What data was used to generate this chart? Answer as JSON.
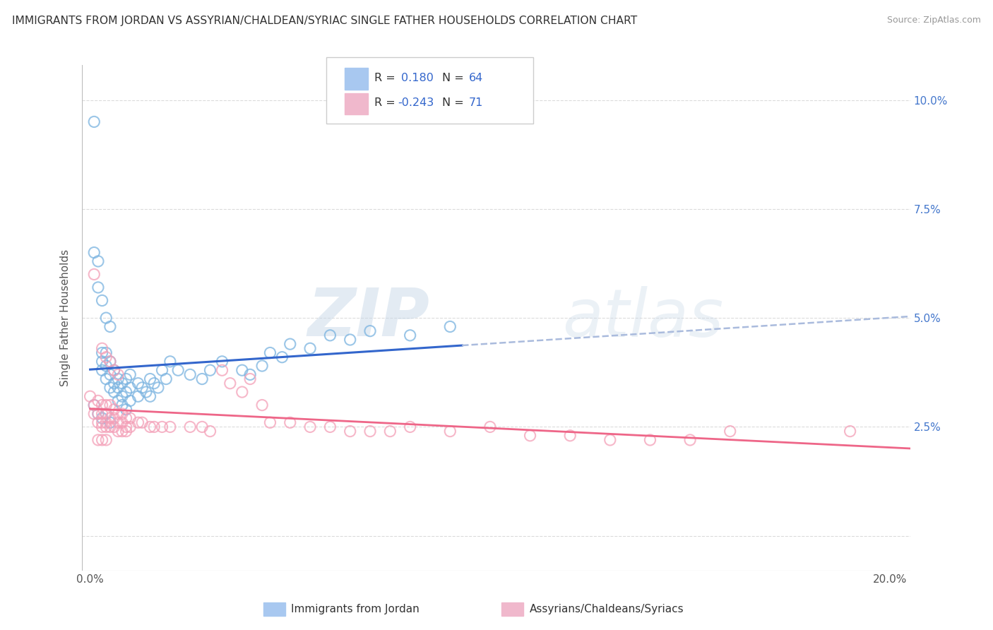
{
  "title": "IMMIGRANTS FROM JORDAN VS ASSYRIAN/CHALDEAN/SYRIAC SINGLE FATHER HOUSEHOLDS CORRELATION CHART",
  "source": "Source: ZipAtlas.com",
  "ylabel": "Single Father Households",
  "x_ticks": [
    0.0,
    0.05,
    0.1,
    0.15,
    0.2
  ],
  "y_ticks": [
    0.0,
    0.025,
    0.05,
    0.075,
    0.1
  ],
  "xlim": [
    -0.002,
    0.205
  ],
  "ylim": [
    -0.008,
    0.108
  ],
  "series1_color": "#7ab3e0",
  "series2_color": "#f4a0b8",
  "trend1_color": "#3366cc",
  "trend1_ext_color": "#aabbdd",
  "trend2_color": "#ee6688",
  "R1": 0.18,
  "N1": 64,
  "R2": -0.243,
  "N2": 71,
  "watermark_zip": "ZIP",
  "watermark_atlas": "atlas",
  "background_color": "#ffffff",
  "grid_color": "#cccccc",
  "legend_label1": "Immigrants from Jordan",
  "legend_label2": "Assyrians/Chaldeans/Syriacs",
  "legend_box_color1": "#a8c8f0",
  "legend_box_color2": "#f0b8cc",
  "blue_scatter": [
    [
      0.001,
      0.095
    ],
    [
      0.002,
      0.057
    ],
    [
      0.003,
      0.054
    ],
    [
      0.004,
      0.05
    ],
    [
      0.005,
      0.048
    ],
    [
      0.001,
      0.065
    ],
    [
      0.002,
      0.063
    ],
    [
      0.003,
      0.042
    ],
    [
      0.003,
      0.04
    ],
    [
      0.003,
      0.038
    ],
    [
      0.004,
      0.042
    ],
    [
      0.004,
      0.039
    ],
    [
      0.004,
      0.036
    ],
    [
      0.005,
      0.04
    ],
    [
      0.005,
      0.037
    ],
    [
      0.005,
      0.034
    ],
    [
      0.006,
      0.038
    ],
    [
      0.006,
      0.035
    ],
    [
      0.006,
      0.033
    ],
    [
      0.007,
      0.036
    ],
    [
      0.007,
      0.034
    ],
    [
      0.007,
      0.031
    ],
    [
      0.008,
      0.035
    ],
    [
      0.008,
      0.032
    ],
    [
      0.008,
      0.03
    ],
    [
      0.009,
      0.036
    ],
    [
      0.009,
      0.033
    ],
    [
      0.009,
      0.029
    ],
    [
      0.01,
      0.037
    ],
    [
      0.01,
      0.034
    ],
    [
      0.01,
      0.031
    ],
    [
      0.012,
      0.035
    ],
    [
      0.012,
      0.032
    ],
    [
      0.013,
      0.034
    ],
    [
      0.014,
      0.033
    ],
    [
      0.015,
      0.036
    ],
    [
      0.015,
      0.032
    ],
    [
      0.016,
      0.035
    ],
    [
      0.017,
      0.034
    ],
    [
      0.018,
      0.038
    ],
    [
      0.019,
      0.036
    ],
    [
      0.02,
      0.04
    ],
    [
      0.022,
      0.038
    ],
    [
      0.025,
      0.037
    ],
    [
      0.028,
      0.036
    ],
    [
      0.03,
      0.038
    ],
    [
      0.033,
      0.04
    ],
    [
      0.038,
      0.038
    ],
    [
      0.04,
      0.037
    ],
    [
      0.043,
      0.039
    ],
    [
      0.045,
      0.042
    ],
    [
      0.048,
      0.041
    ],
    [
      0.05,
      0.044
    ],
    [
      0.055,
      0.043
    ],
    [
      0.06,
      0.046
    ],
    [
      0.065,
      0.045
    ],
    [
      0.07,
      0.047
    ],
    [
      0.08,
      0.046
    ],
    [
      0.09,
      0.048
    ],
    [
      0.001,
      0.03
    ],
    [
      0.002,
      0.028
    ],
    [
      0.003,
      0.027
    ],
    [
      0.004,
      0.028
    ],
    [
      0.005,
      0.026
    ]
  ],
  "pink_scatter": [
    [
      0.001,
      0.06
    ],
    [
      0.003,
      0.043
    ],
    [
      0.004,
      0.041
    ],
    [
      0.005,
      0.04
    ],
    [
      0.006,
      0.038
    ],
    [
      0.007,
      0.037
    ],
    [
      0.0,
      0.032
    ],
    [
      0.001,
      0.03
    ],
    [
      0.001,
      0.028
    ],
    [
      0.002,
      0.031
    ],
    [
      0.002,
      0.028
    ],
    [
      0.002,
      0.026
    ],
    [
      0.003,
      0.03
    ],
    [
      0.003,
      0.028
    ],
    [
      0.003,
      0.026
    ],
    [
      0.003,
      0.025
    ],
    [
      0.004,
      0.03
    ],
    [
      0.004,
      0.028
    ],
    [
      0.004,
      0.026
    ],
    [
      0.004,
      0.025
    ],
    [
      0.005,
      0.03
    ],
    [
      0.005,
      0.027
    ],
    [
      0.005,
      0.025
    ],
    [
      0.006,
      0.029
    ],
    [
      0.006,
      0.027
    ],
    [
      0.006,
      0.025
    ],
    [
      0.007,
      0.028
    ],
    [
      0.007,
      0.026
    ],
    [
      0.007,
      0.024
    ],
    [
      0.008,
      0.028
    ],
    [
      0.008,
      0.026
    ],
    [
      0.008,
      0.024
    ],
    [
      0.009,
      0.027
    ],
    [
      0.009,
      0.025
    ],
    [
      0.009,
      0.024
    ],
    [
      0.01,
      0.027
    ],
    [
      0.01,
      0.025
    ],
    [
      0.012,
      0.026
    ],
    [
      0.013,
      0.026
    ],
    [
      0.015,
      0.025
    ],
    [
      0.016,
      0.025
    ],
    [
      0.018,
      0.025
    ],
    [
      0.02,
      0.025
    ],
    [
      0.025,
      0.025
    ],
    [
      0.028,
      0.025
    ],
    [
      0.03,
      0.024
    ],
    [
      0.033,
      0.038
    ],
    [
      0.035,
      0.035
    ],
    [
      0.038,
      0.033
    ],
    [
      0.04,
      0.036
    ],
    [
      0.043,
      0.03
    ],
    [
      0.045,
      0.026
    ],
    [
      0.05,
      0.026
    ],
    [
      0.055,
      0.025
    ],
    [
      0.06,
      0.025
    ],
    [
      0.065,
      0.024
    ],
    [
      0.07,
      0.024
    ],
    [
      0.075,
      0.024
    ],
    [
      0.08,
      0.025
    ],
    [
      0.09,
      0.024
    ],
    [
      0.1,
      0.025
    ],
    [
      0.11,
      0.023
    ],
    [
      0.12,
      0.023
    ],
    [
      0.13,
      0.022
    ],
    [
      0.14,
      0.022
    ],
    [
      0.15,
      0.022
    ],
    [
      0.16,
      0.024
    ],
    [
      0.19,
      0.024
    ],
    [
      0.002,
      0.022
    ],
    [
      0.003,
      0.022
    ],
    [
      0.004,
      0.022
    ]
  ]
}
